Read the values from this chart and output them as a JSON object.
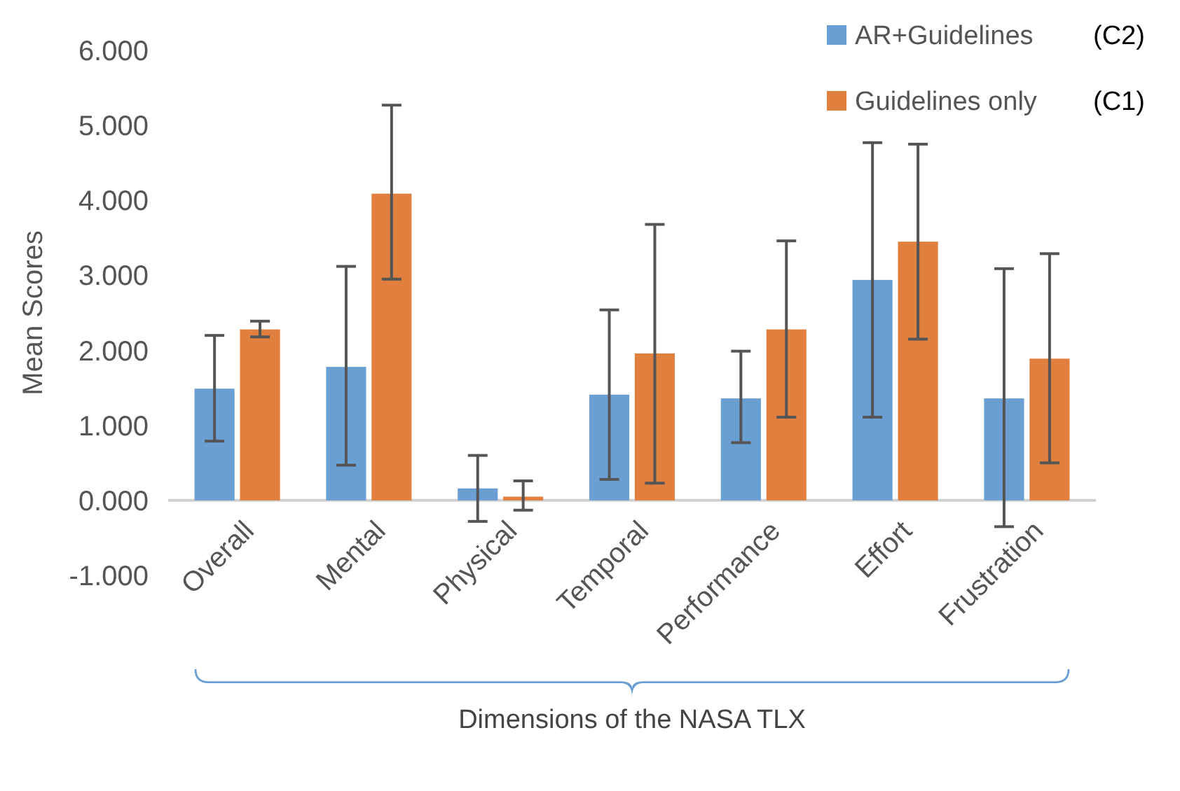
{
  "chart_data": {
    "type": "bar",
    "xlabel": "Dimensions of the NASA TLX",
    "ylabel": "Mean Scores",
    "categories": [
      "Overall",
      "Mental",
      "Physical",
      "Temporal",
      "Performance",
      "Effort",
      "Frustration"
    ],
    "series": [
      {
        "name": "AR+Guidelines",
        "color": "#6a9fd3",
        "values": [
          1.49,
          1.78,
          0.16,
          1.41,
          1.36,
          2.94,
          1.36
        ],
        "errors": [
          [
            0.79,
            2.2
          ],
          [
            0.47,
            3.12
          ],
          [
            -0.28,
            0.6
          ],
          [
            0.28,
            2.54
          ],
          [
            0.77,
            1.99
          ],
          [
            1.11,
            4.77
          ],
          [
            -0.35,
            3.09
          ]
        ]
      },
      {
        "name": "Guidelines only",
        "color": "#e07f3e",
        "values": [
          2.28,
          4.09,
          0.05,
          1.96,
          2.28,
          3.45,
          1.89
        ],
        "errors": [
          [
            2.18,
            2.39
          ],
          [
            2.95,
            5.27
          ],
          [
            -0.13,
            0.26
          ],
          [
            0.23,
            3.68
          ],
          [
            1.11,
            3.46
          ],
          [
            2.15,
            4.75
          ],
          [
            0.5,
            3.29
          ]
        ]
      }
    ],
    "ylim": [
      -1,
      6
    ],
    "yticks": [
      {
        "value": -1,
        "label": "-1.000"
      },
      {
        "value": 0,
        "label": "0.000"
      },
      {
        "value": 1,
        "label": "1.000"
      },
      {
        "value": 2,
        "label": "2.000"
      },
      {
        "value": 3,
        "label": "3.000"
      },
      {
        "value": 4,
        "label": "4.000"
      },
      {
        "value": 5,
        "label": "5.000"
      },
      {
        "value": 6,
        "label": "6.000"
      }
    ],
    "legend": "top right",
    "annotations": [
      "(C2)",
      "(C1)"
    ]
  }
}
